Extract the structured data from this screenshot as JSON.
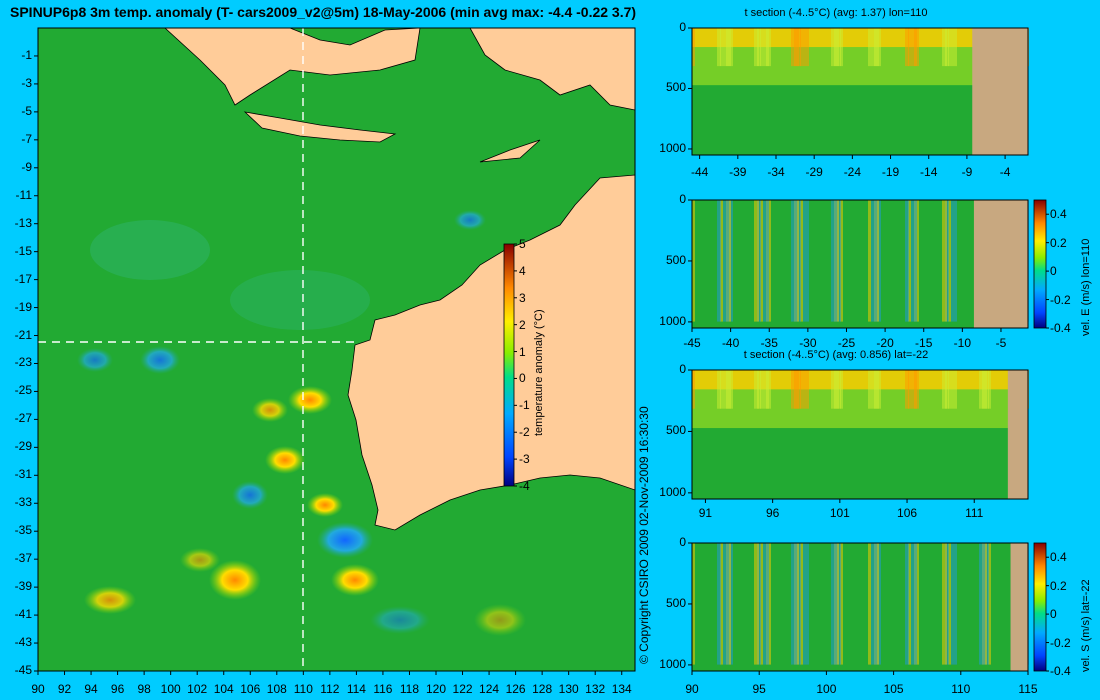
{
  "title": "SPINUP6p8 3m temp. anomaly (T- cars2009_v2@5m) 18-May-2006 (min avg max: -4.4 -0.22 3.7)",
  "copyright": "© Copyright CSIRO 2009   02-Nov-2009 16:30:30",
  "colors": {
    "background": "#00ccff",
    "land": "#ffcc99",
    "section_land": "#c8a880",
    "ocean": "#22aa33",
    "section_line": "#ffffff"
  },
  "chart_data": [
    {
      "type": "heatmap",
      "name": "map",
      "title": "SPINUP6p8 3m temp. anomaly (T- cars2009_v2@5m) 18-May-2006 (min avg max: -4.4 -0.22 3.7)",
      "x_ticks": [
        90,
        92,
        94,
        96,
        98,
        100,
        102,
        104,
        106,
        108,
        110,
        112,
        114,
        116,
        118,
        120,
        122,
        124,
        126,
        128,
        130,
        132,
        134
      ],
      "y_ticks": [
        -1,
        -3,
        -5,
        -7,
        -9,
        -11,
        -13,
        -15,
        -17,
        -19,
        -21,
        -23,
        -25,
        -27,
        -29,
        -31,
        -33,
        -35,
        -37,
        -39,
        -41,
        -43,
        -45
      ],
      "xlim": [
        90,
        135
      ],
      "ylim": [
        -45,
        1
      ],
      "section_lines": {
        "lon": 110,
        "lat": -22
      },
      "colorbar": {
        "label": "temperature anomaly (°C)",
        "range": [
          -4,
          5
        ],
        "ticks": [
          5,
          4,
          3,
          2,
          1,
          0,
          -1,
          -2,
          -3,
          -4
        ]
      },
      "stats": {
        "min": -4.4,
        "avg": -0.22,
        "max": 3.7
      }
    },
    {
      "type": "heatmap",
      "name": "t-section-lon110",
      "title": "t section (-4..5°C) (avg: 1.37) lon=110",
      "x_ticks": [
        -44,
        -39,
        -34,
        -29,
        -24,
        -19,
        -14,
        -9,
        -4
      ],
      "y_ticks": [
        0,
        500,
        1000
      ],
      "xlim": [
        -45,
        -1
      ],
      "ylim": [
        1050,
        0
      ],
      "land_from_x": -8.3
    },
    {
      "type": "heatmap",
      "name": "velE-section-lon110",
      "title": "",
      "x_ticks": [
        -45,
        -40,
        -35,
        -30,
        -25,
        -20,
        -15,
        -10,
        -5
      ],
      "y_ticks": [
        0,
        500,
        1000
      ],
      "xlim": [
        -45,
        -1.5
      ],
      "ylim": [
        1050,
        0
      ],
      "land_from_x": -8.5,
      "colorbar": {
        "label": "vel. E (m/s) lon=110",
        "range": [
          -0.4,
          0.5
        ],
        "ticks": [
          0.4,
          0.2,
          0,
          -0.2,
          -0.4
        ]
      }
    },
    {
      "type": "heatmap",
      "name": "t-section-lat-22",
      "title": "t section (-4..5°C) (avg: 0.856) lat=-22",
      "x_ticks": [
        91,
        96,
        101,
        106,
        111
      ],
      "y_ticks": [
        0,
        500,
        1000
      ],
      "xlim": [
        90,
        115
      ],
      "ylim": [
        1050,
        0
      ],
      "land_from_x": 113.5
    },
    {
      "type": "heatmap",
      "name": "velS-section-lat-22",
      "title": "",
      "x_ticks": [
        90,
        95,
        100,
        105,
        110,
        115
      ],
      "y_ticks": [
        0,
        500,
        1000
      ],
      "xlim": [
        90,
        115
      ],
      "ylim": [
        1050,
        0
      ],
      "land_from_x": 113.7,
      "colorbar": {
        "label": "vel. S (m/s) lat=-22",
        "range": [
          -0.4,
          0.5
        ],
        "ticks": [
          0.4,
          0.2,
          0,
          -0.2,
          -0.4
        ]
      }
    }
  ]
}
